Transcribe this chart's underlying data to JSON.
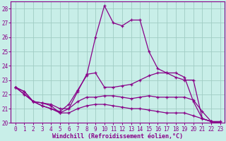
{
  "title": "Windchill (Refroidissement éolien,°C)",
  "bg_color": "#c8eee8",
  "grid_color": "#a0ccc4",
  "line_color": "#880088",
  "spine_color": "#880088",
  "xlim": [
    -0.5,
    23.5
  ],
  "ylim": [
    20,
    28.5
  ],
  "yticks": [
    20,
    21,
    22,
    23,
    24,
    25,
    26,
    27,
    28
  ],
  "xticks": [
    0,
    1,
    2,
    3,
    4,
    5,
    6,
    7,
    8,
    9,
    10,
    11,
    12,
    13,
    14,
    15,
    16,
    17,
    18,
    19,
    20,
    21,
    22,
    23
  ],
  "lines": [
    {
      "x": [
        0,
        1,
        2,
        3,
        4,
        5,
        6,
        7,
        8,
        9,
        10,
        11,
        12,
        13,
        14,
        15,
        16,
        17,
        18,
        19,
        20,
        21,
        22,
        23
      ],
      "y": [
        22.5,
        22.2,
        21.5,
        21.2,
        21.0,
        20.8,
        21.3,
        22.3,
        23.3,
        26.0,
        28.2,
        27.0,
        26.8,
        27.2,
        27.2,
        25.0,
        23.8,
        23.5,
        23.2,
        23.0,
        23.0,
        20.3,
        20.1,
        20.1
      ]
    },
    {
      "x": [
        0,
        1,
        2,
        3,
        4,
        5,
        6,
        7,
        8,
        9,
        10,
        11,
        12,
        13,
        14,
        15,
        16,
        17,
        18,
        19,
        20,
        21,
        22,
        23
      ],
      "y": [
        22.5,
        22.2,
        21.5,
        21.2,
        21.0,
        20.7,
        21.0,
        22.2,
        23.4,
        23.5,
        22.5,
        22.5,
        22.6,
        22.7,
        23.0,
        23.3,
        23.5,
        23.5,
        23.5,
        23.2,
        21.5,
        20.3,
        20.1,
        20.0
      ]
    },
    {
      "x": [
        0,
        1,
        2,
        3,
        4,
        5,
        6,
        7,
        8,
        9,
        10,
        11,
        12,
        13,
        14,
        15,
        16,
        17,
        18,
        19,
        20,
        21,
        22,
        23
      ],
      "y": [
        22.5,
        22.0,
        21.5,
        21.4,
        21.3,
        21.0,
        21.0,
        21.5,
        21.8,
        21.8,
        21.9,
        21.9,
        21.8,
        21.7,
        21.8,
        21.9,
        21.8,
        21.8,
        21.8,
        21.8,
        21.6,
        20.8,
        20.1,
        20.0
      ]
    },
    {
      "x": [
        0,
        1,
        2,
        3,
        4,
        5,
        6,
        7,
        8,
        9,
        10,
        11,
        12,
        13,
        14,
        15,
        16,
        17,
        18,
        19,
        20,
        21,
        22,
        23
      ],
      "y": [
        22.5,
        22.0,
        21.5,
        21.4,
        21.2,
        20.7,
        20.7,
        21.0,
        21.2,
        21.3,
        21.3,
        21.2,
        21.1,
        21.0,
        21.0,
        20.9,
        20.8,
        20.7,
        20.7,
        20.7,
        20.5,
        20.3,
        20.1,
        20.0
      ]
    }
  ],
  "xlabel_fontsize": 6.0,
  "tick_fontsize": 5.5
}
